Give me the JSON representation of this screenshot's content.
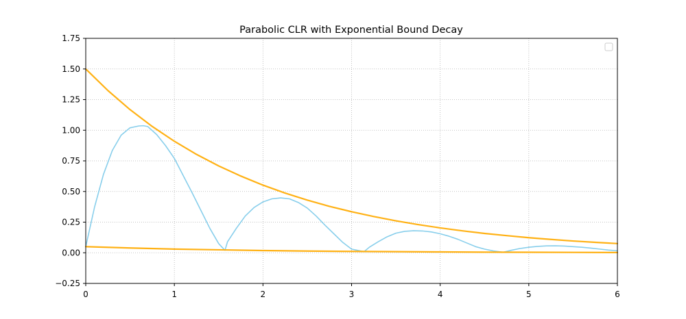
{
  "chart_data": {
    "type": "line",
    "title": "Parabolic CLR with Exponential Bound Decay",
    "xlabel": "",
    "ylabel": "",
    "xlim": [
      0,
      6
    ],
    "ylim": [
      -0.25,
      1.75
    ],
    "xticks": [
      0,
      1,
      2,
      3,
      4,
      5,
      6
    ],
    "xtick_labels": [
      "0",
      "1",
      "2",
      "3",
      "4",
      "5",
      "6"
    ],
    "yticks": [
      -0.25,
      0,
      0.25,
      0.5,
      0.75,
      1.0,
      1.25,
      1.5,
      1.75
    ],
    "ytick_labels": [
      "−0.25",
      "0.00",
      "0.25",
      "0.50",
      "0.75",
      "1.00",
      "1.25",
      "1.50",
      "1.75"
    ],
    "grid": true,
    "legend": "top-right, empty",
    "colors": {
      "clr": "#87ceeb",
      "bound": "#ffb114"
    },
    "series": [
      {
        "x": [
          0,
          0.1,
          0.2,
          0.3,
          0.4,
          0.5,
          0.6,
          0.65,
          0.7,
          0.8,
          0.9,
          1.0,
          1.1,
          1.2,
          1.3,
          1.4,
          1.5,
          1.571,
          1.6,
          1.7,
          1.8,
          1.9,
          2.0,
          2.1,
          2.2,
          2.3,
          2.4,
          2.5,
          2.6,
          2.7,
          2.8,
          2.9,
          3.0,
          3.1,
          3.142,
          3.2,
          3.3,
          3.4,
          3.5,
          3.6,
          3.7,
          3.8,
          3.9,
          4.0,
          4.1,
          4.2,
          4.3,
          4.4,
          4.5,
          4.6,
          4.712,
          4.8,
          4.9,
          5.0,
          5.1,
          5.2,
          5.3,
          5.4,
          5.5,
          5.6,
          5.7,
          5.8,
          5.9,
          6.0
        ],
        "values": [
          0.05,
          0.375,
          0.64,
          0.835,
          0.96,
          1.02,
          1.035,
          1.037,
          1.03,
          0.965,
          0.875,
          0.77,
          0.63,
          0.49,
          0.345,
          0.2,
          0.075,
          0.02,
          0.09,
          0.2,
          0.3,
          0.37,
          0.415,
          0.44,
          0.448,
          0.44,
          0.41,
          0.365,
          0.3,
          0.225,
          0.155,
          0.085,
          0.03,
          0.015,
          0.01,
          0.045,
          0.09,
          0.13,
          0.16,
          0.175,
          0.18,
          0.178,
          0.17,
          0.155,
          0.135,
          0.11,
          0.08,
          0.05,
          0.03,
          0.015,
          0.005,
          0.02,
          0.035,
          0.045,
          0.052,
          0.056,
          0.057,
          0.055,
          0.05,
          0.045,
          0.038,
          0.03,
          0.022,
          0.016
        ]
      },
      {
        "x": [
          0,
          0.25,
          0.5,
          0.75,
          1.0,
          1.25,
          1.5,
          1.75,
          2.0,
          2.25,
          2.5,
          2.75,
          3.0,
          3.25,
          3.5,
          3.75,
          4.0,
          4.25,
          4.5,
          4.75,
          5.0,
          5.25,
          5.5,
          5.75,
          6.0
        ],
        "values": [
          1.5,
          1.324,
          1.168,
          1.031,
          0.91,
          0.803,
          0.709,
          0.626,
          0.552,
          0.487,
          0.43,
          0.379,
          0.335,
          0.296,
          0.261,
          0.23,
          0.203,
          0.179,
          0.158,
          0.14,
          0.123,
          0.109,
          0.096,
          0.085,
          0.075
        ]
      },
      {
        "x": [
          0,
          0.5,
          1.0,
          1.5,
          2.0,
          2.5,
          3.0,
          3.5,
          4.0,
          4.5,
          5.0,
          5.5,
          6.0
        ],
        "values": [
          0.05,
          0.039,
          0.03,
          0.024,
          0.018,
          0.014,
          0.011,
          0.009,
          0.007,
          0.005,
          0.004,
          0.003,
          0.002
        ]
      }
    ]
  }
}
